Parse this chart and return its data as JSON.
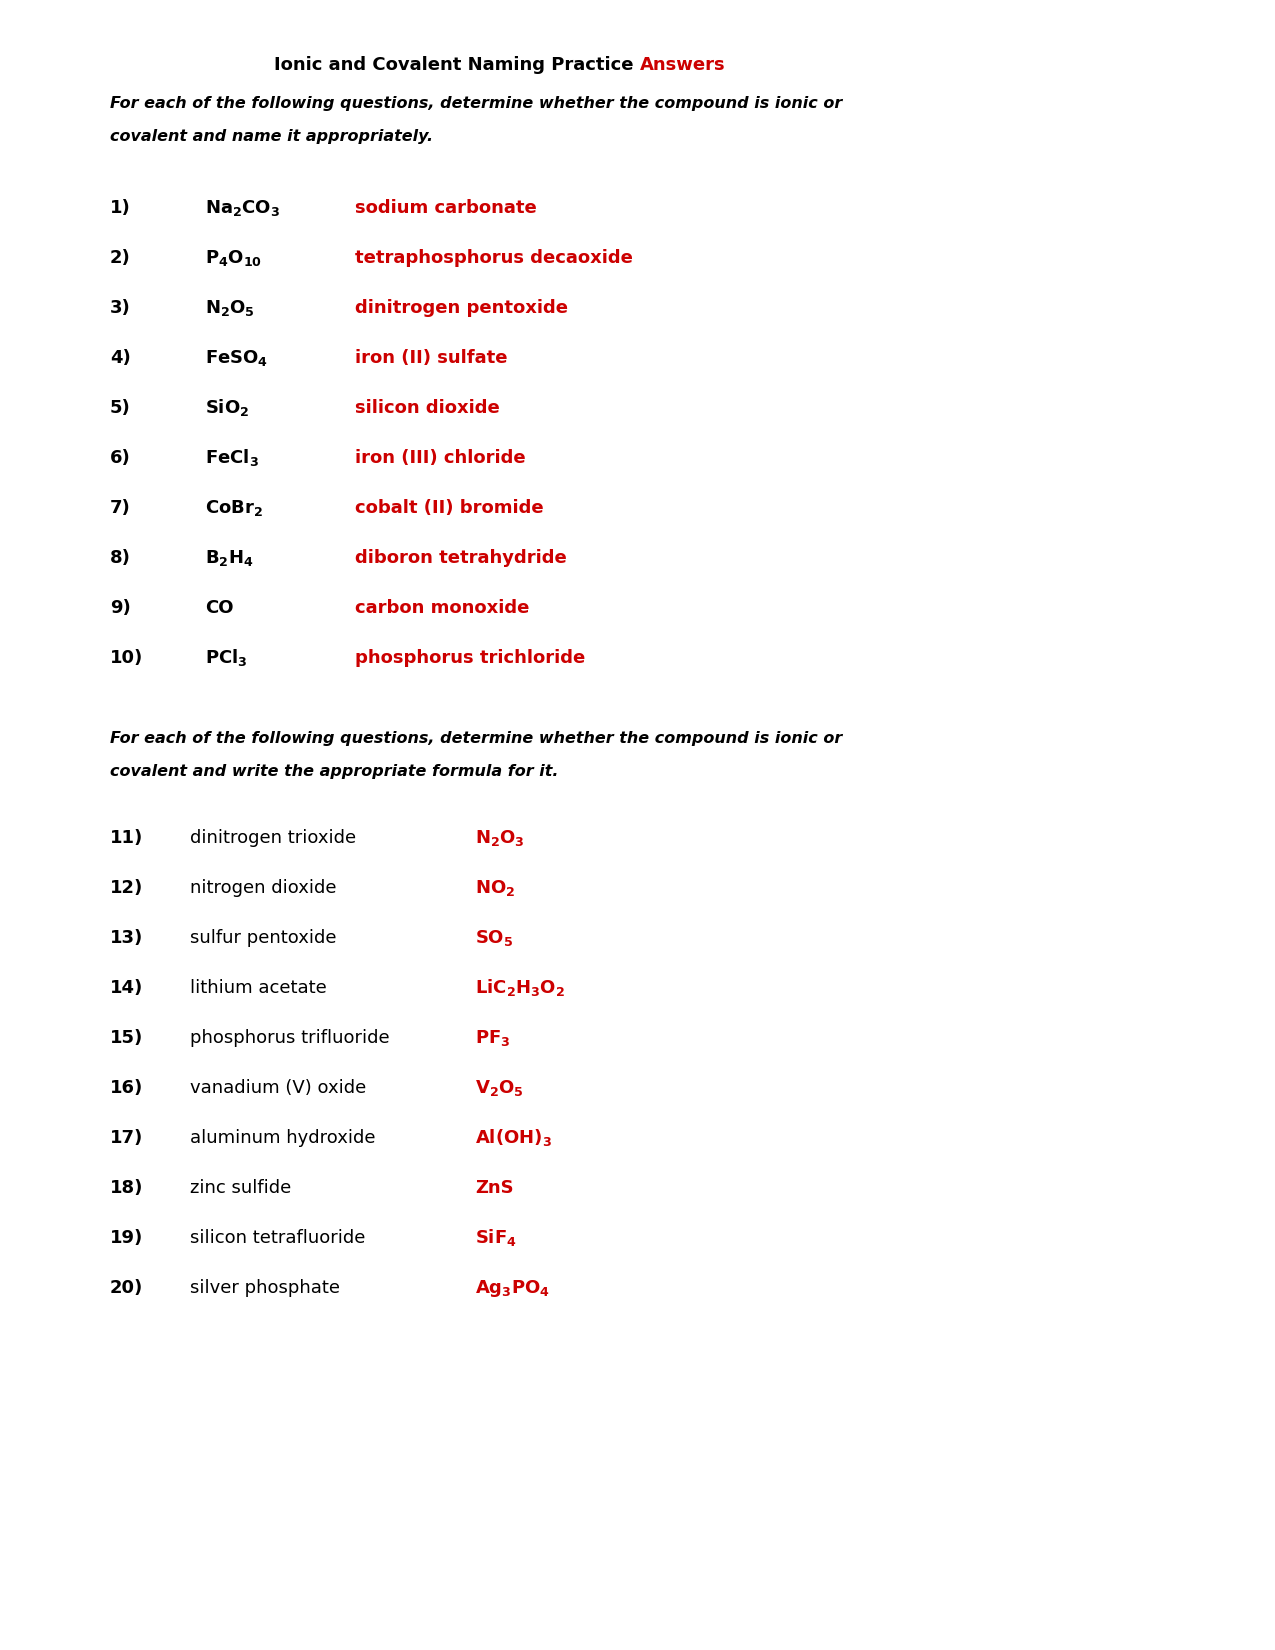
{
  "title_black": "Ionic and Covalent Naming Practice ",
  "title_red": "Answers",
  "instruction1_line1": "For each of the following questions, determine whether the compound is ionic or",
  "instruction1_line2": "covalent and name it appropriately.",
  "instruction2_line1": "For each of the following questions, determine whether the compound is ionic or",
  "instruction2_line2": "covalent and write the appropriate formula for it.",
  "background": "#ffffff",
  "black": "#000000",
  "red": "#cc0000",
  "part1": [
    {
      "num": "1)",
      "formula": "Na$_2$CO$_3$",
      "answer": "sodium carbonate"
    },
    {
      "num": "2)",
      "formula": "P$_4$O$_{10}$",
      "answer": "tetraphosphorus decaoxide"
    },
    {
      "num": "3)",
      "formula": "N$_2$O$_5$",
      "answer": "dinitrogen pentoxide"
    },
    {
      "num": "4)",
      "formula": "FeSO$_4$",
      "answer": "iron (II) sulfate"
    },
    {
      "num": "5)",
      "formula": "SiO$_2$",
      "answer": "silicon dioxide"
    },
    {
      "num": "6)",
      "formula": "FeCl$_3$",
      "answer": "iron (III) chloride"
    },
    {
      "num": "7)",
      "formula": "CoBr$_2$",
      "answer": "cobalt (II) bromide"
    },
    {
      "num": "8)",
      "formula": "B$_2$H$_4$",
      "answer": "diboron tetrahydride"
    },
    {
      "num": "9)",
      "formula": "CO",
      "answer": "carbon monoxide"
    },
    {
      "num": "10)",
      "formula": "PCl$_3$",
      "answer": "phosphorus trichloride"
    }
  ],
  "part2": [
    {
      "num": "11)",
      "name": "dinitrogen trioxide",
      "formula": "N$_2$O$_3$"
    },
    {
      "num": "12)",
      "name": "nitrogen dioxide",
      "formula": "NO$_2$"
    },
    {
      "num": "13)",
      "name": "sulfur pentoxide",
      "formula": "SO$_5$"
    },
    {
      "num": "14)",
      "name": "lithium acetate",
      "formula": "LiC$_2$H$_3$O$_2$"
    },
    {
      "num": "15)",
      "name": "phosphorus trifluoride",
      "formula": "PF$_3$"
    },
    {
      "num": "16)",
      "name": "vanadium (V) oxide",
      "formula": "V$_2$O$_5$"
    },
    {
      "num": "17)",
      "name": "aluminum hydroxide",
      "formula": "Al(OH)$_3$"
    },
    {
      "num": "18)",
      "name": "zinc sulfide",
      "formula": "ZnS"
    },
    {
      "num": "19)",
      "name": "silicon tetrafluoride",
      "formula": "SiF$_4$"
    },
    {
      "num": "20)",
      "name": "silver phosphate",
      "formula": "Ag$_3$PO$_4$"
    }
  ]
}
